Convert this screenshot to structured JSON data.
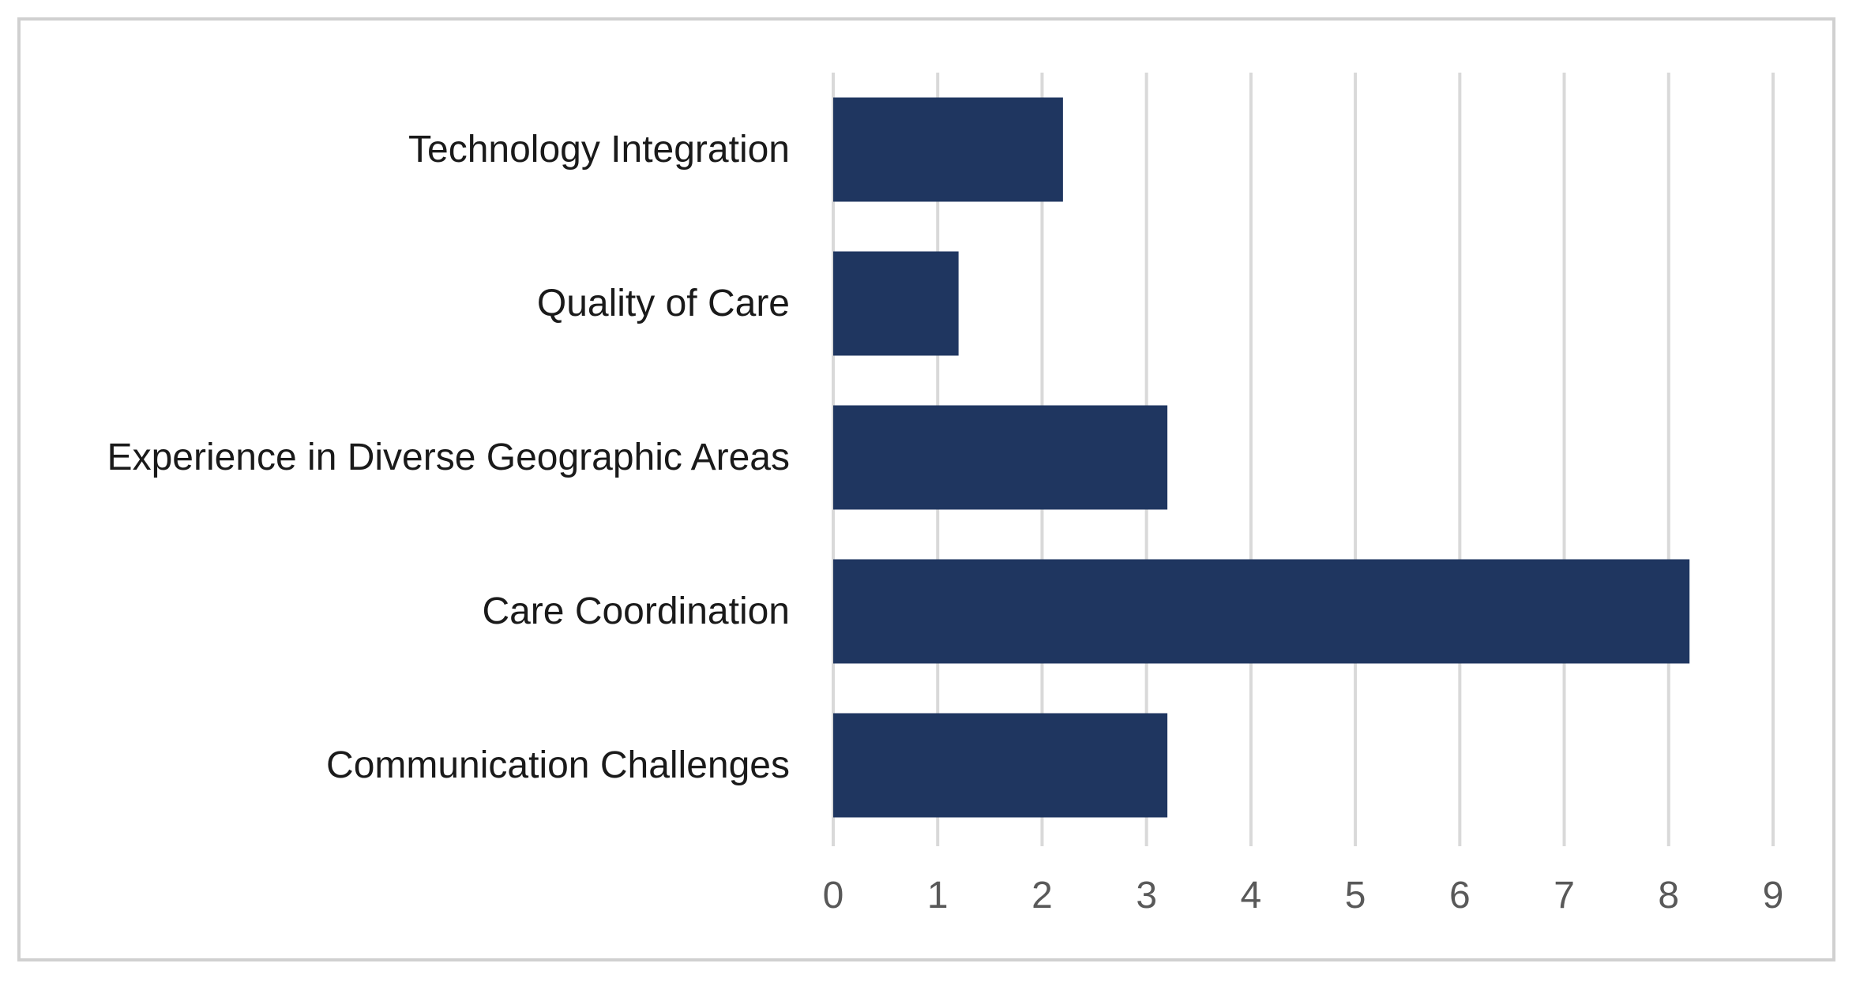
{
  "chart_data": {
    "type": "bar",
    "orientation": "horizontal",
    "categories": [
      "Technology Integration",
      "Quality of Care",
      "Experience in Diverse Geographic Areas",
      "Care Coordination",
      "Communication Challenges"
    ],
    "values": [
      2.2,
      1.2,
      3.2,
      8.2,
      3.2
    ],
    "xlim": [
      0,
      9
    ],
    "xticks": [
      "0",
      "1",
      "2",
      "3",
      "4",
      "5",
      "6",
      "7",
      "8",
      "9"
    ],
    "grid": true,
    "legend": "none",
    "bar_color": "#1f3660",
    "grid_color": "#d9d9d9",
    "title": "",
    "xlabel": "",
    "ylabel": ""
  }
}
